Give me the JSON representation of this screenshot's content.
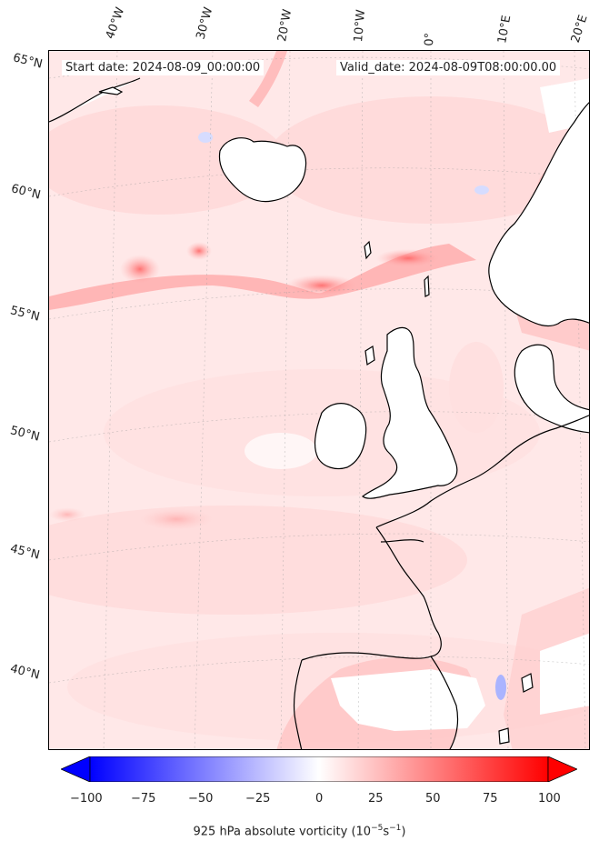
{
  "map": {
    "start_label": "Start date: 2024-08-09_00:00:00",
    "valid_label": "Valid_date: 2024-08-09T08:00:00.00",
    "lon_labels": [
      "40°W",
      "30°W",
      "20°W",
      "10°W",
      "0°",
      "10°E",
      "20°E"
    ],
    "lat_labels": [
      "65°N",
      "60°N",
      "55°N",
      "50°N",
      "45°N",
      "40°N"
    ]
  },
  "colorbar": {
    "ticks": [
      "−100",
      "−75",
      "−50",
      "−25",
      "0",
      "25",
      "50",
      "75",
      "100"
    ],
    "title_main": "925 hPa absolute vorticity (10",
    "title_exp1": "−5",
    "title_mid": "s",
    "title_exp2": "−1",
    "title_end": ")",
    "min_color": "#0000ff",
    "mid_color": "#ffffff",
    "max_color": "#ff0000"
  }
}
